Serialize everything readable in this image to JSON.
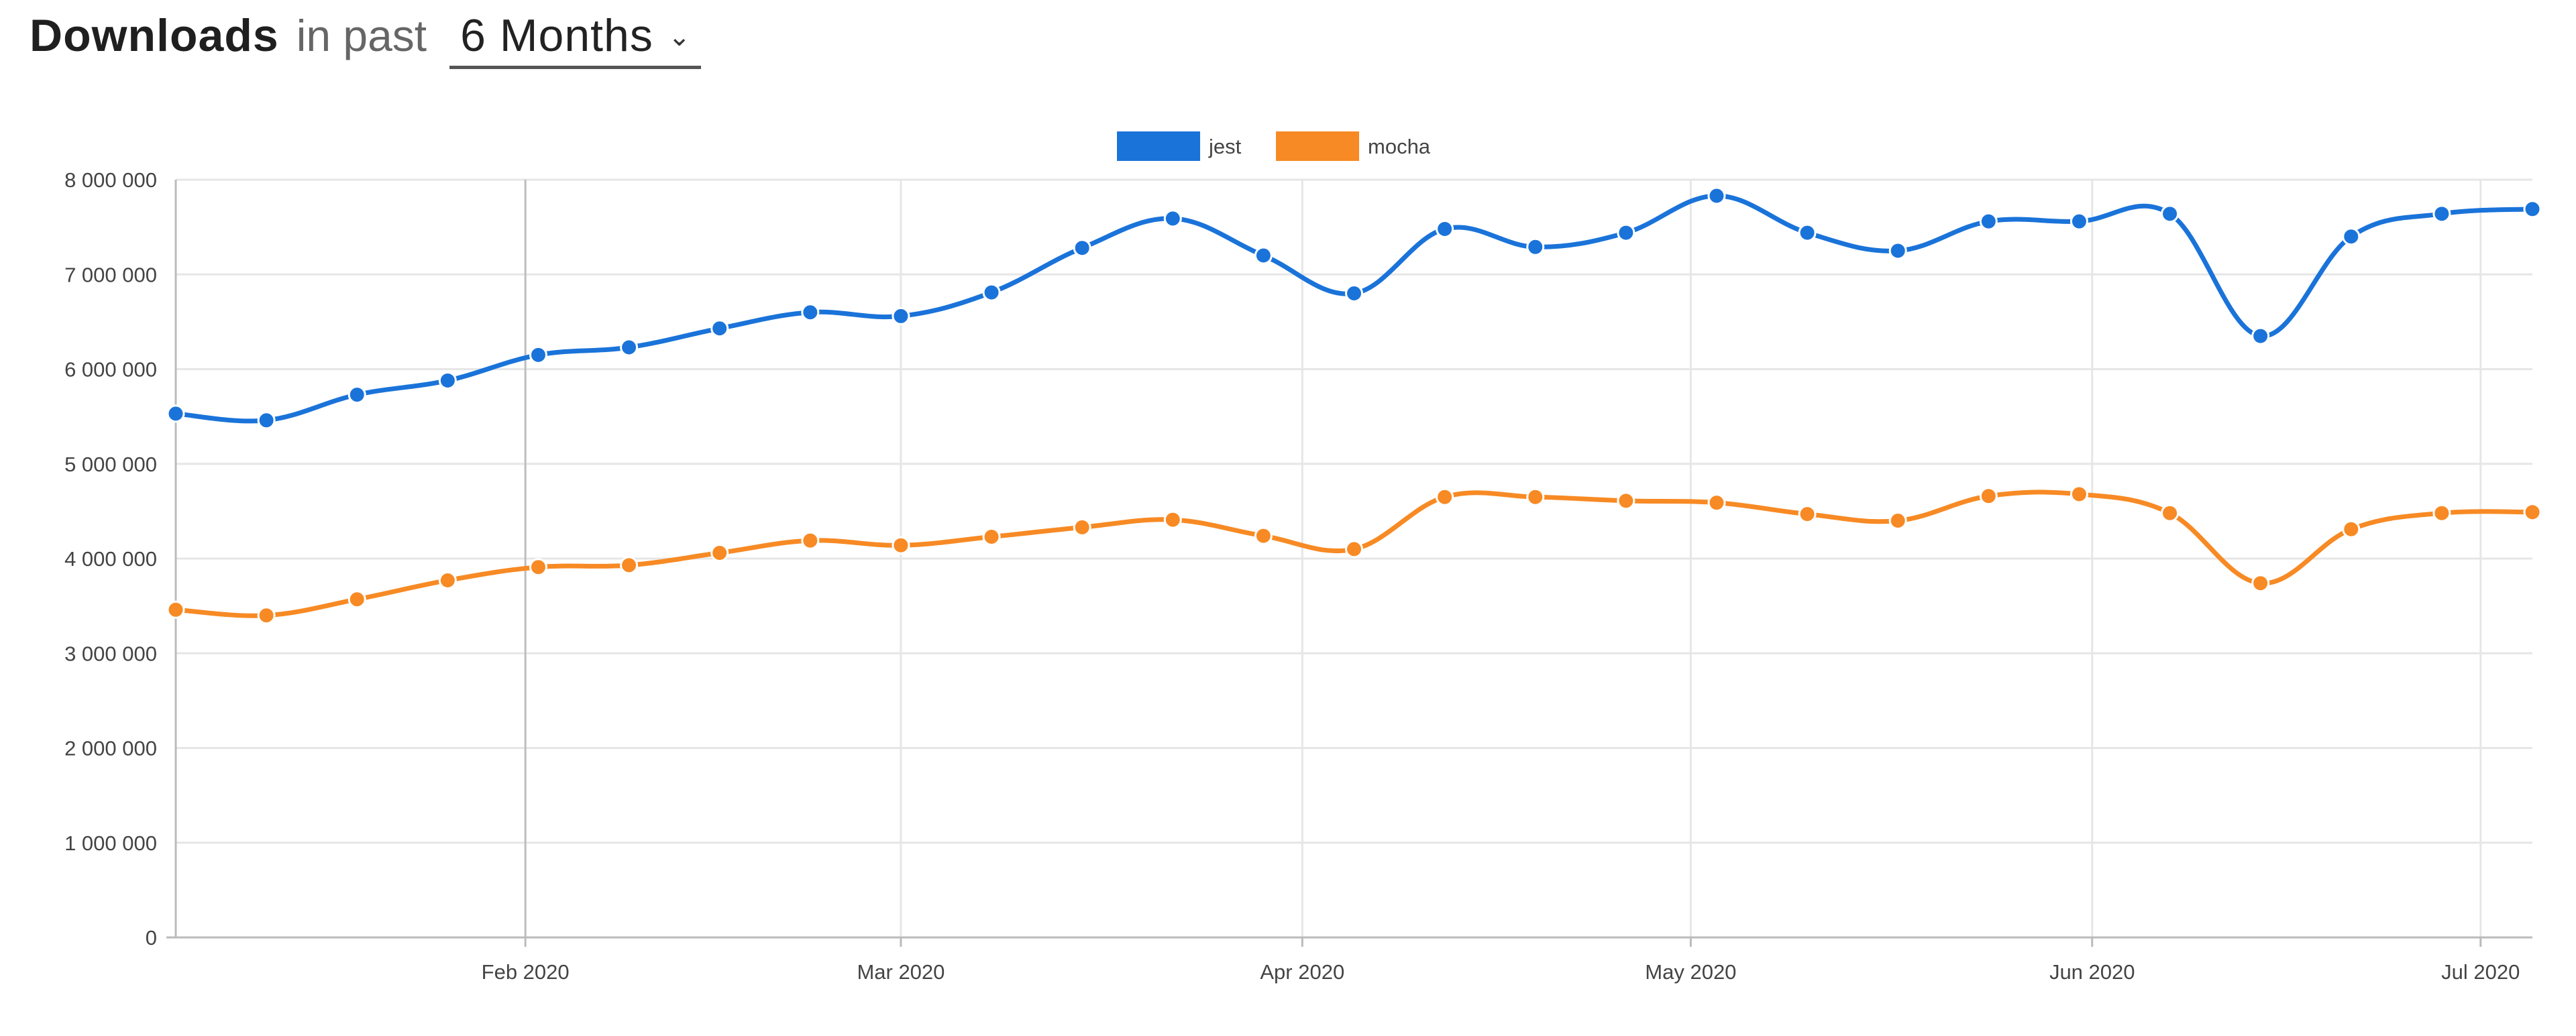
{
  "header": {
    "title": "Downloads",
    "subtitle": "in past",
    "period": "6 Months"
  },
  "colors": {
    "jest": "#1a73d9",
    "mocha": "#f78a24",
    "grid": "#e6e6e6",
    "axis": "#bbbbbb",
    "month_line": "#bdbdbd"
  },
  "chart_data": {
    "type": "line",
    "legend_position": "top-center",
    "grid": true,
    "ylim": [
      0,
      8000000
    ],
    "y_ticks": [
      {
        "value": 0,
        "label": "0"
      },
      {
        "value": 1000000,
        "label": "1 000 000"
      },
      {
        "value": 2000000,
        "label": "2 000 000"
      },
      {
        "value": 3000000,
        "label": "3 000 000"
      },
      {
        "value": 4000000,
        "label": "4 000 000"
      },
      {
        "value": 5000000,
        "label": "5 000 000"
      },
      {
        "value": 6000000,
        "label": "6 000 000"
      },
      {
        "value": 7000000,
        "label": "7 000 000"
      },
      {
        "value": 8000000,
        "label": "8 000 000"
      }
    ],
    "x_range": [
      "2020-01-05",
      "2020-07-05"
    ],
    "x_ticks": [
      {
        "date": "2020-02-01",
        "label": "Feb 2020"
      },
      {
        "date": "2020-03-01",
        "label": "Mar 2020"
      },
      {
        "date": "2020-04-01",
        "label": "Apr 2020"
      },
      {
        "date": "2020-05-01",
        "label": "May 2020"
      },
      {
        "date": "2020-06-01",
        "label": "Jun 2020"
      },
      {
        "date": "2020-07-01",
        "label": "Jul 2020"
      }
    ],
    "x": [
      "2020-01-05",
      "2020-01-12",
      "2020-01-19",
      "2020-01-26",
      "2020-02-02",
      "2020-02-09",
      "2020-02-16",
      "2020-02-23",
      "2020-03-01",
      "2020-03-08",
      "2020-03-15",
      "2020-03-22",
      "2020-03-29",
      "2020-04-05",
      "2020-04-12",
      "2020-04-19",
      "2020-04-26",
      "2020-05-03",
      "2020-05-10",
      "2020-05-17",
      "2020-05-24",
      "2020-05-31",
      "2020-06-07",
      "2020-06-14",
      "2020-06-21",
      "2020-06-28",
      "2020-07-05"
    ],
    "series": [
      {
        "name": "jest",
        "color": "#1a73d9",
        "values": [
          5530000,
          5460000,
          5730000,
          5880000,
          6150000,
          6230000,
          6430000,
          6600000,
          6560000,
          6810000,
          7280000,
          7590000,
          7200000,
          6800000,
          7480000,
          7290000,
          7440000,
          7830000,
          7440000,
          7250000,
          7560000,
          7560000,
          7640000,
          6350000,
          7400000,
          7640000,
          7690000
        ]
      },
      {
        "name": "mocha",
        "color": "#f78a24",
        "values": [
          3460000,
          3400000,
          3570000,
          3770000,
          3910000,
          3930000,
          4060000,
          4190000,
          4140000,
          4230000,
          4330000,
          4410000,
          4240000,
          4100000,
          4650000,
          4650000,
          4610000,
          4590000,
          4470000,
          4400000,
          4660000,
          4680000,
          4480000,
          3740000,
          4310000,
          4480000,
          4490000
        ]
      }
    ]
  }
}
